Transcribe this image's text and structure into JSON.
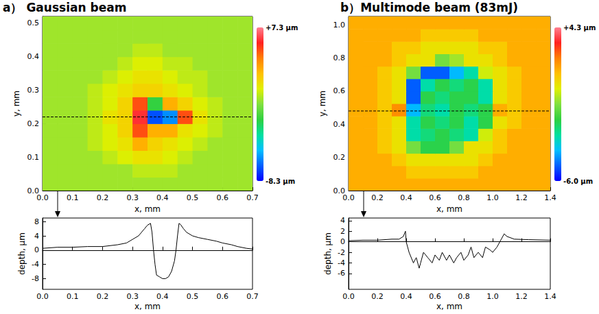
{
  "chart_data": [
    {
      "type": "heatmap",
      "title": "a） Gaussian beam",
      "x_label": "x, mm",
      "y_label": "y, mm",
      "xlim": [
        0,
        0.7
      ],
      "xticks": [
        {
          "value": 0,
          "label": "0.0"
        },
        {
          "value": 0.1,
          "label": "0.1"
        },
        {
          "value": 0.2,
          "label": "0.2"
        },
        {
          "value": 0.3,
          "label": "0.3"
        },
        {
          "value": 0.4,
          "label": "0.4"
        },
        {
          "value": 0.5,
          "label": "0.5"
        },
        {
          "value": 0.6,
          "label": "0.6"
        },
        {
          "value": 0.7,
          "label": "0.7"
        }
      ],
      "ylim": [
        0,
        0.52
      ],
      "yticks": [
        {
          "value": 0,
          "label": "0.0"
        },
        {
          "value": 0.1,
          "label": "0.1"
        },
        {
          "value": 0.2,
          "label": "0.2"
        },
        {
          "value": 0.3,
          "label": "0.3"
        },
        {
          "value": 0.4,
          "label": "0.4"
        },
        {
          "value": 0.5,
          "label": "0.5"
        }
      ],
      "x_edges": [
        0,
        0.05,
        0.1,
        0.15,
        0.2,
        0.25,
        0.3,
        0.35,
        0.4,
        0.45,
        0.5,
        0.55,
        0.6,
        0.65,
        0.7
      ],
      "y_edges": [
        0,
        0.04,
        0.08,
        0.12,
        0.16,
        0.2,
        0.24,
        0.28,
        0.32,
        0.36,
        0.4,
        0.44,
        0.48,
        0.52
      ],
      "z": [
        [
          0,
          0,
          0,
          0,
          0,
          0,
          0,
          0,
          0,
          0,
          0,
          0,
          0,
          0
        ],
        [
          0,
          0,
          0,
          0,
          0,
          0,
          0.5,
          0.5,
          0.5,
          0,
          0,
          0,
          0,
          0
        ],
        [
          0,
          0,
          0,
          0,
          0.5,
          1,
          1.5,
          1.5,
          1,
          0.5,
          0,
          0,
          0,
          0
        ],
        [
          0,
          0,
          0,
          0.5,
          1,
          1.5,
          3,
          2,
          1.5,
          1,
          0.5,
          0,
          0,
          0
        ],
        [
          0,
          0,
          0,
          0.5,
          1,
          2,
          5,
          3,
          3,
          1.5,
          1,
          0.5,
          0,
          0
        ],
        [
          0,
          0,
          0,
          0.5,
          1.5,
          2,
          6,
          -7,
          -6,
          5,
          1.5,
          0.5,
          0,
          0
        ],
        [
          0,
          0,
          0,
          0.5,
          1,
          2,
          5,
          -2,
          3,
          2,
          1,
          0.5,
          0,
          0
        ],
        [
          0,
          0,
          0,
          0.5,
          1,
          1.5,
          2,
          2,
          1.5,
          1,
          0.5,
          0,
          0,
          0
        ],
        [
          0,
          0,
          0,
          0,
          0.5,
          1,
          1.5,
          1.5,
          1,
          0.5,
          0.5,
          0,
          0,
          0
        ],
        [
          0,
          0,
          0,
          0,
          0,
          0.5,
          1,
          1,
          0.5,
          0.5,
          0,
          0,
          0,
          0
        ],
        [
          0,
          0,
          0,
          0,
          0,
          0,
          0.5,
          0.5,
          0,
          0,
          0,
          0,
          0,
          0
        ],
        [
          0,
          0,
          0,
          0,
          0,
          0,
          0,
          0,
          0,
          0,
          0,
          0,
          0,
          0
        ],
        [
          0,
          0,
          0,
          0,
          0,
          0,
          0,
          0,
          0,
          0,
          0,
          0,
          0,
          0
        ]
      ],
      "colorbar": {
        "range": [
          -8.3,
          7.3
        ],
        "ticks": [
          {
            "value": 7.3,
            "label": "+7.3 μm"
          },
          {
            "value": -8.3,
            "label": "-8.3 μm"
          }
        ]
      },
      "profile_y": 0.22,
      "grid": false
    },
    {
      "type": "line",
      "x_label": "x, mm",
      "y_label": "depth, μm",
      "xlim": [
        0,
        0.7
      ],
      "xticks": [
        {
          "value": 0,
          "label": "0.0"
        },
        {
          "value": 0.1,
          "label": "0.1"
        },
        {
          "value": 0.2,
          "label": "0.2"
        },
        {
          "value": 0.3,
          "label": "0.3"
        },
        {
          "value": 0.4,
          "label": "0.4"
        },
        {
          "value": 0.5,
          "label": "0.5"
        },
        {
          "value": 0.6,
          "label": "0.6"
        },
        {
          "value": 0.7,
          "label": "0.7"
        }
      ],
      "ylim": [
        -11,
        9
      ],
      "yticks": [
        -8,
        -4,
        0,
        4,
        8
      ],
      "color": "#000000",
      "x": [
        0,
        0.05,
        0.1,
        0.15,
        0.2,
        0.25,
        0.28,
        0.3,
        0.32,
        0.33,
        0.34,
        0.35,
        0.36,
        0.365,
        0.37,
        0.375,
        0.38,
        0.39,
        0.4,
        0.41,
        0.42,
        0.43,
        0.44,
        0.445,
        0.45,
        0.455,
        0.46,
        0.47,
        0.48,
        0.5,
        0.52,
        0.55,
        0.58,
        0.6,
        0.63,
        0.65,
        0.68,
        0.7
      ],
      "values": [
        0.5,
        0.8,
        0.8,
        1,
        1,
        1.5,
        2,
        3,
        4,
        5,
        6,
        7,
        7.5,
        5,
        0,
        -4,
        -7,
        -7.5,
        -8,
        -8,
        -7.5,
        -6,
        -3,
        0,
        4,
        7.5,
        7.2,
        6,
        5,
        4,
        3.5,
        3,
        2.5,
        2,
        1.5,
        1,
        0.5,
        0.3
      ],
      "grid": false
    },
    {
      "type": "heatmap",
      "title": "b）Multimode beam (83mJ)",
      "x_label": "x, mm",
      "y_label": "y, mm",
      "xlim": [
        0,
        1.4
      ],
      "xticks": [
        {
          "value": 0,
          "label": "0.0"
        },
        {
          "value": 0.2,
          "label": "0.2"
        },
        {
          "value": 0.4,
          "label": "0.4"
        },
        {
          "value": 0.6,
          "label": "0.6"
        },
        {
          "value": 0.8,
          "label": "0.8"
        },
        {
          "value": 1,
          "label": "1.0"
        },
        {
          "value": 1.2,
          "label": "1.2"
        },
        {
          "value": 1.4,
          "label": "1.4"
        }
      ],
      "ylim": [
        0,
        1.05
      ],
      "yticks": [
        {
          "value": 0,
          "label": "0.0"
        },
        {
          "value": 0.2,
          "label": "0.2"
        },
        {
          "value": 0.4,
          "label": "0.4"
        },
        {
          "value": 0.6,
          "label": "0.6"
        },
        {
          "value": 0.8,
          "label": "0.8"
        },
        {
          "value": 1,
          "label": "1.0"
        }
      ],
      "x_edges": [
        0,
        0.1,
        0.2,
        0.3,
        0.4,
        0.5,
        0.6,
        0.7,
        0.8,
        0.9,
        1,
        1.1,
        1.2,
        1.3,
        1.4
      ],
      "y_edges": [
        0,
        0.075,
        0.15,
        0.225,
        0.3,
        0.375,
        0.45,
        0.525,
        0.6,
        0.675,
        0.75,
        0.825,
        0.9,
        0.975,
        1.05
      ],
      "z": [
        [
          1.5,
          1.5,
          1.5,
          1.5,
          1.5,
          1.5,
          1.5,
          1.5,
          1.5,
          1.5,
          1.5,
          1.5,
          1.5,
          1.5
        ],
        [
          1.5,
          1.5,
          1.5,
          1.5,
          1,
          1,
          1,
          1,
          1,
          1.5,
          1.5,
          1.5,
          1.5,
          1.5
        ],
        [
          1.5,
          1.5,
          1.5,
          1,
          0.5,
          0.5,
          0.5,
          0.5,
          0.5,
          1,
          1.5,
          1.5,
          1.5,
          1.5
        ],
        [
          1.5,
          1.5,
          1,
          0.5,
          -1,
          -2,
          -2,
          -1,
          0.5,
          0.5,
          1,
          1.5,
          1.5,
          1.5
        ],
        [
          1.5,
          1.5,
          1,
          0.5,
          -3,
          -2.5,
          -2,
          -2.5,
          -3,
          0,
          1,
          1.5,
          1.5,
          1.5
        ],
        [
          1.5,
          1.5,
          1,
          0.5,
          -3,
          -2,
          -2.5,
          -2,
          -3,
          -2,
          0.5,
          1,
          1.5,
          1.5
        ],
        [
          1.5,
          1.5,
          1,
          2,
          -4,
          -2.5,
          -3,
          -2,
          -2.5,
          -2,
          1.5,
          1,
          1.5,
          1.5
        ],
        [
          1.5,
          1.5,
          1,
          0.5,
          -5,
          -2,
          -2.5,
          -2,
          -2,
          -3,
          0.5,
          1,
          1.5,
          1.5
        ],
        [
          1.5,
          1.5,
          1,
          0.5,
          -5,
          -3,
          -2,
          -2.5,
          -2,
          -3,
          0.5,
          1,
          1.5,
          1.5
        ],
        [
          1.5,
          1.5,
          1,
          0.5,
          -1,
          -5,
          -5,
          -4,
          -3,
          0,
          0.5,
          1,
          1.5,
          1.5
        ],
        [
          1.5,
          1.5,
          1.5,
          1,
          0.5,
          0.5,
          -1,
          -0.5,
          0.5,
          0.5,
          1,
          1.5,
          1.5,
          1.5
        ],
        [
          1.5,
          1.5,
          1.5,
          1,
          1,
          0.5,
          0.5,
          0.5,
          0.5,
          1,
          1,
          1.5,
          1.5,
          1.5
        ],
        [
          1.5,
          1.5,
          1.5,
          1.5,
          1.5,
          1,
          1,
          1,
          1,
          1.5,
          1.5,
          1.5,
          1.5,
          1.5
        ],
        [
          1.5,
          1.5,
          1.5,
          1.5,
          1.5,
          1.5,
          1.5,
          1.5,
          1.5,
          1.5,
          1.5,
          1.5,
          1.5,
          1.5
        ]
      ],
      "colorbar": {
        "range": [
          -6,
          4.3
        ],
        "ticks": [
          {
            "value": 4.3,
            "label": "+4.3 μm"
          },
          {
            "value": -6,
            "label": "-6.0 μm"
          }
        ]
      },
      "profile_y": 0.48,
      "grid": false
    },
    {
      "type": "line",
      "x_label": "x, mm",
      "y_label": "depth, μm",
      "xlim": [
        0,
        1.4
      ],
      "xticks": [
        {
          "value": 0,
          "label": "0.0"
        },
        {
          "value": 0.2,
          "label": "0.2"
        },
        {
          "value": 0.4,
          "label": "0.4"
        },
        {
          "value": 0.6,
          "label": "0.6"
        },
        {
          "value": 0.8,
          "label": "0.8"
        },
        {
          "value": 1,
          "label": "1.0"
        },
        {
          "value": 1.2,
          "label": "1.2"
        },
        {
          "value": 1.4,
          "label": "1.4"
        }
      ],
      "ylim": [
        -9,
        4.5
      ],
      "yticks": [
        -6,
        -4,
        -2,
        0,
        2,
        4
      ],
      "color": "#000000",
      "x": [
        0,
        0.1,
        0.2,
        0.3,
        0.35,
        0.38,
        0.395,
        0.4,
        0.42,
        0.45,
        0.47,
        0.49,
        0.5,
        0.52,
        0.55,
        0.58,
        0.6,
        0.63,
        0.65,
        0.68,
        0.7,
        0.73,
        0.75,
        0.78,
        0.8,
        0.83,
        0.85,
        0.87,
        0.9,
        0.93,
        0.95,
        0.98,
        1,
        1.03,
        1.06,
        1.08,
        1.1,
        1.15,
        1.25,
        1.4
      ],
      "values": [
        0.2,
        0.3,
        0.3,
        0.5,
        0.5,
        1,
        2,
        0,
        -2,
        -4,
        -3,
        -5,
        -4,
        -2,
        -3,
        -4,
        -2.5,
        -3.5,
        -2,
        -3.5,
        -2.5,
        -4,
        -3,
        -2,
        -3.5,
        -2.5,
        -1,
        -3,
        -2,
        -3,
        -1,
        -1.5,
        -2,
        -1,
        0.5,
        1.5,
        1,
        0.5,
        0.4,
        0.3
      ],
      "grid": false
    }
  ]
}
